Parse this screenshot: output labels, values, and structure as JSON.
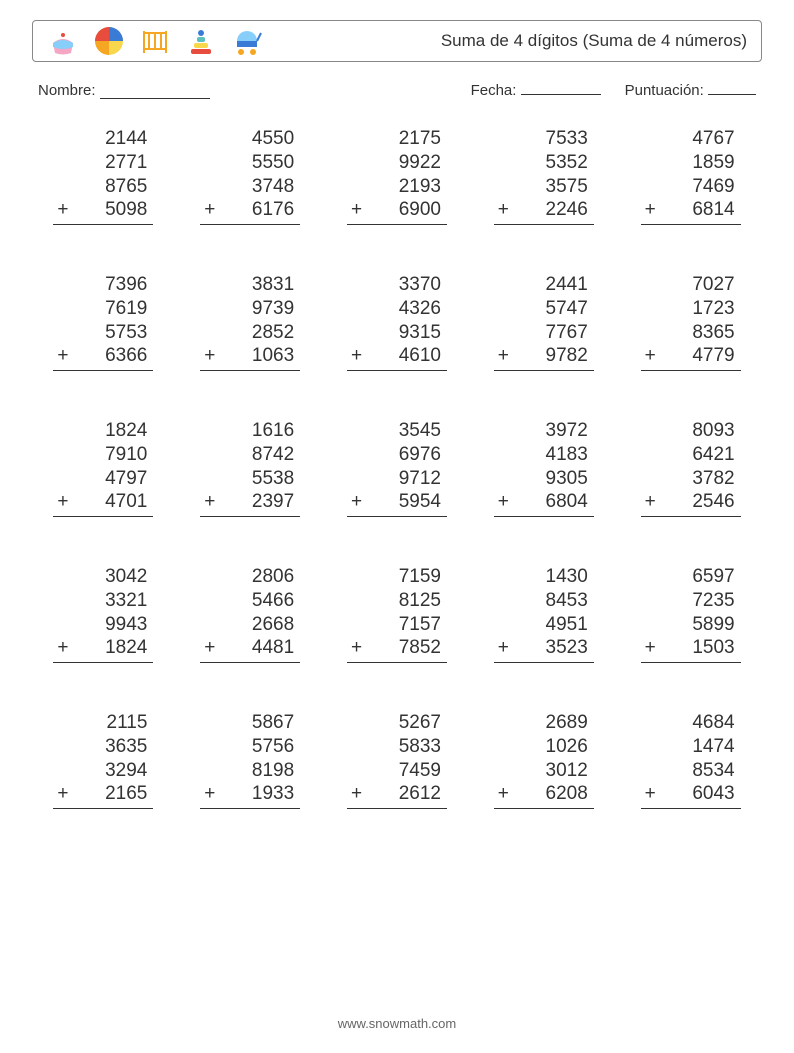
{
  "title": "Suma de 4 dígitos (Suma de 4 números)",
  "meta": {
    "name_label": "Nombre:",
    "date_label": "Fecha:",
    "score_label": "Puntuación:"
  },
  "footer": "www.snowmath.com",
  "icon_colors": {
    "pink": "#f4a7c4",
    "blue": "#3a7bd5",
    "orange": "#f5a623",
    "red": "#e74c3c",
    "yellow": "#f9d74c",
    "teal": "#5bc0be",
    "lightblue": "#87cefa"
  },
  "style": {
    "background": "#ffffff",
    "text_color": "#333333",
    "border_color": "#888888",
    "rule_color": "#333333",
    "font_family": "Arial",
    "title_fontsize": 17,
    "body_fontsize": 15,
    "problem_fontsize": 19,
    "footer_fontsize": 13
  },
  "layout": {
    "rows": 5,
    "cols": 5,
    "addends_per_problem": 4,
    "operator": "+"
  },
  "problems": [
    [
      [
        "2144",
        "2771",
        "8765",
        "5098"
      ],
      [
        "4550",
        "5550",
        "3748",
        "6176"
      ],
      [
        "2175",
        "9922",
        "2193",
        "6900"
      ],
      [
        "7533",
        "5352",
        "3575",
        "2246"
      ],
      [
        "4767",
        "1859",
        "7469",
        "6814"
      ]
    ],
    [
      [
        "7396",
        "7619",
        "5753",
        "6366"
      ],
      [
        "3831",
        "9739",
        "2852",
        "1063"
      ],
      [
        "3370",
        "4326",
        "9315",
        "4610"
      ],
      [
        "2441",
        "5747",
        "7767",
        "9782"
      ],
      [
        "7027",
        "1723",
        "8365",
        "4779"
      ]
    ],
    [
      [
        "1824",
        "7910",
        "4797",
        "4701"
      ],
      [
        "1616",
        "8742",
        "5538",
        "2397"
      ],
      [
        "3545",
        "6976",
        "9712",
        "5954"
      ],
      [
        "3972",
        "4183",
        "9305",
        "6804"
      ],
      [
        "8093",
        "6421",
        "3782",
        "2546"
      ]
    ],
    [
      [
        "3042",
        "3321",
        "9943",
        "1824"
      ],
      [
        "2806",
        "5466",
        "2668",
        "4481"
      ],
      [
        "7159",
        "8125",
        "7157",
        "7852"
      ],
      [
        "1430",
        "8453",
        "4951",
        "3523"
      ],
      [
        "6597",
        "7235",
        "5899",
        "1503"
      ]
    ],
    [
      [
        "2115",
        "3635",
        "3294",
        "2165"
      ],
      [
        "5867",
        "5756",
        "8198",
        "1933"
      ],
      [
        "5267",
        "5833",
        "7459",
        "2612"
      ],
      [
        "2689",
        "1026",
        "3012",
        "6208"
      ],
      [
        "4684",
        "1474",
        "8534",
        "6043"
      ]
    ]
  ]
}
